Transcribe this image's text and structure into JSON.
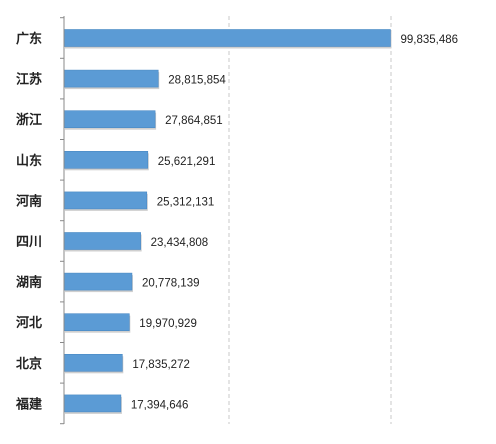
{
  "colors": {
    "bar": "#5b9bd5",
    "bar_edge": "#4a89c4",
    "shadow": "#cfcfcf",
    "axis": "#888888",
    "gridline": "#c8c8c8",
    "text": "#222222"
  },
  "chart_data": {
    "type": "bar",
    "orientation": "horizontal",
    "title": "",
    "xlabel": "",
    "ylabel": "",
    "xlim": [
      0,
      100000000
    ],
    "grid": "vertical dashed",
    "legend": "none",
    "categories": [
      "广东",
      "江苏",
      "浙江",
      "山东",
      "河南",
      "四川",
      "湖南",
      "河北",
      "北京",
      "福建"
    ],
    "values": [
      99835486,
      28815854,
      27864851,
      25621291,
      25312131,
      23434808,
      20778139,
      19970929,
      17835272,
      17394646
    ],
    "value_labels": [
      "99,835,486",
      "28,815,854",
      "27,864,851",
      "25,621,291",
      "25,312,131",
      "23,434,808",
      "20,778,139",
      "19,970,929",
      "17,835,272",
      "17,394,646"
    ]
  }
}
